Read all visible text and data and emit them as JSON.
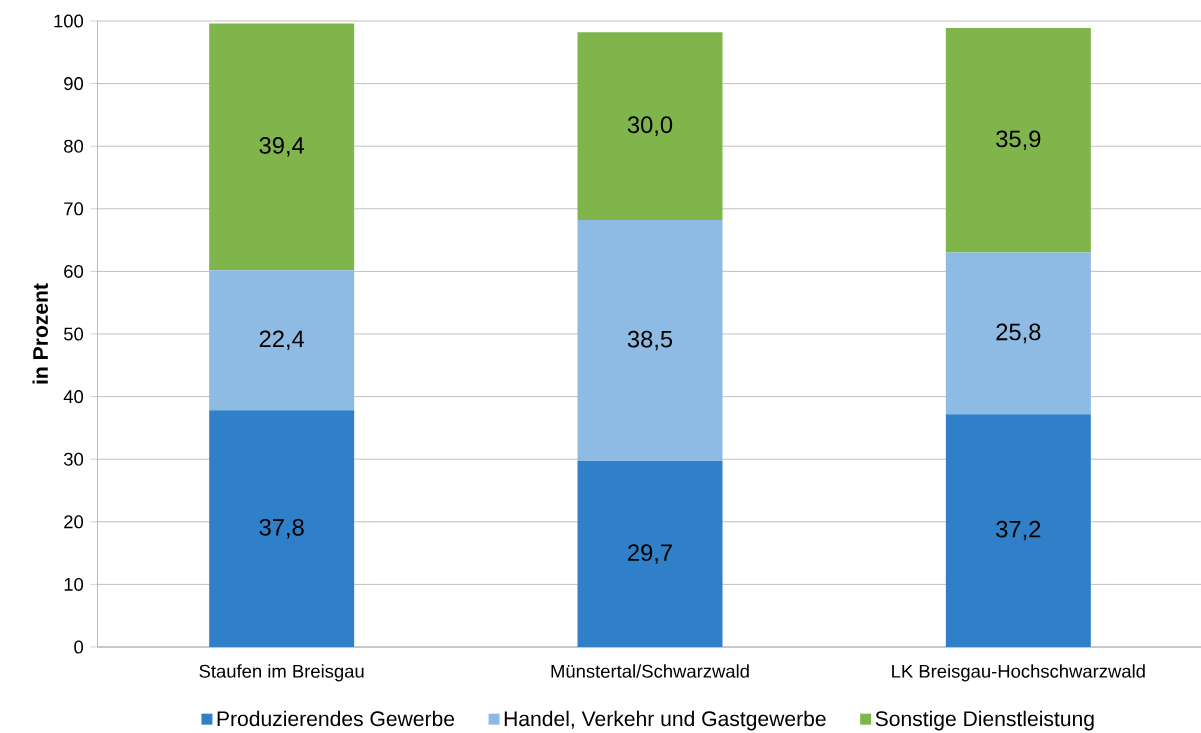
{
  "chart_data": {
    "type": "bar",
    "stacked": true,
    "ylabel": "in Prozent",
    "categories": [
      "Staufen im Breisgau",
      "Münstertal/Schwarzwald",
      "LK Breisgau-Hochschwarzwald"
    ],
    "series": [
      {
        "name": "Produzierendes Gewerbe",
        "color": "#2f80c8",
        "values": [
          37.8,
          29.7,
          37.2
        ],
        "value_labels": [
          "37,8",
          "29,7",
          "37,2"
        ]
      },
      {
        "name": "Handel, Verkehr und Gastgewerbe",
        "color": "#8dbbe3",
        "values": [
          22.4,
          38.5,
          25.8
        ],
        "value_labels": [
          "22,4",
          "38,5",
          "25,8"
        ]
      },
      {
        "name": "Sonstige Dienstleistung",
        "color": "#80b54b",
        "values": [
          39.4,
          30.0,
          35.9
        ],
        "value_labels": [
          "39,4",
          "30,0",
          "35,9"
        ]
      }
    ],
    "ylim": [
      0,
      100
    ],
    "yticks": [
      0,
      10,
      20,
      30,
      40,
      50,
      60,
      70,
      80,
      90,
      100
    ],
    "grid": "y",
    "legend": "bottom"
  }
}
